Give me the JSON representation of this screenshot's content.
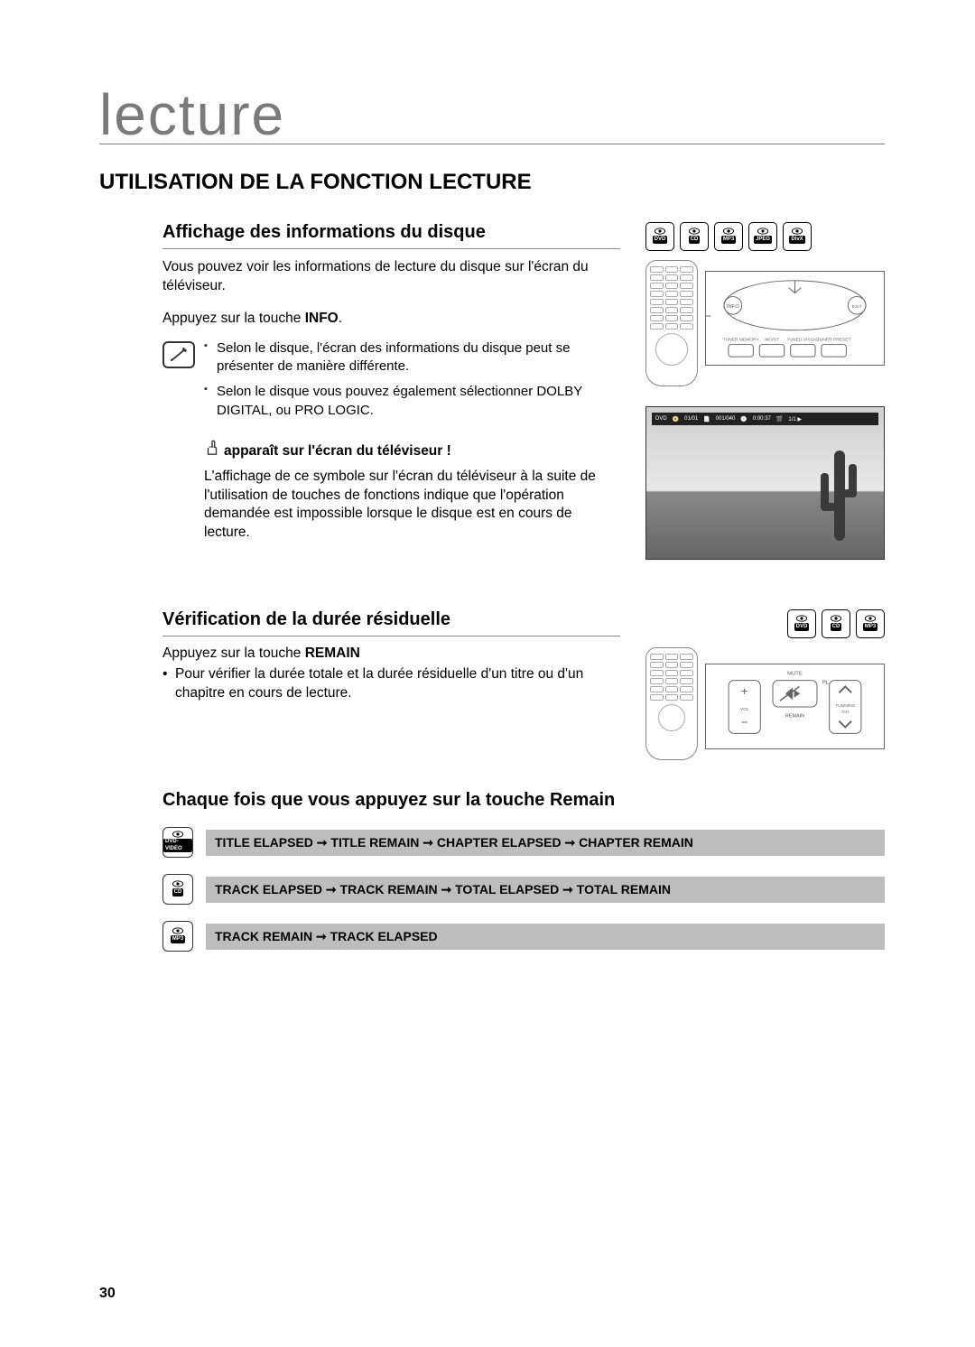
{
  "chapter": "lecture",
  "section_title": "UTILISATION DE LA FONCTION LECTURE",
  "s1": {
    "heading": "Affichage des informations du disque",
    "intro": "Vous pouvez voir les informations de lecture du disque sur l'écran du téléviseur.",
    "instruction_prefix": "Appuyez sur la touche ",
    "instruction_key": "INFO",
    "instruction_suffix": ".",
    "notes": [
      "Selon le disque, l'écran des informations du disque peut se présenter de manière différente.",
      "Selon le disque vous pouvez également sélectionner DOLBY DIGITAL, ou PRO LOGIC."
    ],
    "hand_text": "apparaît sur l'écran du téléviseur !",
    "hand_para": "L'affichage de ce symbole sur l'écran du téléviseur à la suite de l'utilisation de touches de fonctions indique que l'opération demandée est impossible lorsque le disque est en cours de lecture.",
    "formats": [
      "DVD",
      "CD",
      "MP3",
      "JPEG",
      "DivX"
    ],
    "tv_bar": {
      "items": [
        "DVD",
        "01/01",
        "001/040",
        "0:00:37",
        "1/1 ▶"
      ]
    }
  },
  "s2": {
    "heading": "Vérification de la durée résiduelle",
    "instruction_prefix": "Appuyez sur la touche ",
    "instruction_key": "REMAIN",
    "bullet": "Pour vérifier la durée totale et la durée résiduelle d'un titre ou d'un chapitre en cours de lecture.",
    "formats": [
      "DVD",
      "CD",
      "MP3"
    ],
    "panel_labels": {
      "mute": "MUTE",
      "vol": "VOL",
      "remain": "REMAIN",
      "tuning": "TUNNING",
      "ch": "/CH"
    }
  },
  "s3": {
    "heading": "Chaque fois que vous appuyez sur la touche Remain",
    "rows": [
      {
        "fmt": "DVD-VIDEO",
        "text": "TITLE ELAPSED ➞ TITLE REMAIN ➞ CHAPTER ELAPSED ➞ CHAPTER REMAIN"
      },
      {
        "fmt": "CD",
        "text": "TRACK ELAPSED ➞ TRACK REMAIN ➞ TOTAL ELAPSED ➞ TOTAL REMAIN"
      },
      {
        "fmt": "MP3",
        "text": "TRACK REMAIN ➞ TRACK ELAPSED"
      }
    ]
  },
  "page_number": "30",
  "colors": {
    "chapter": "#7a7a7a",
    "rule": "#888888",
    "seq_bar": "#bdbdbd",
    "text": "#000000"
  }
}
